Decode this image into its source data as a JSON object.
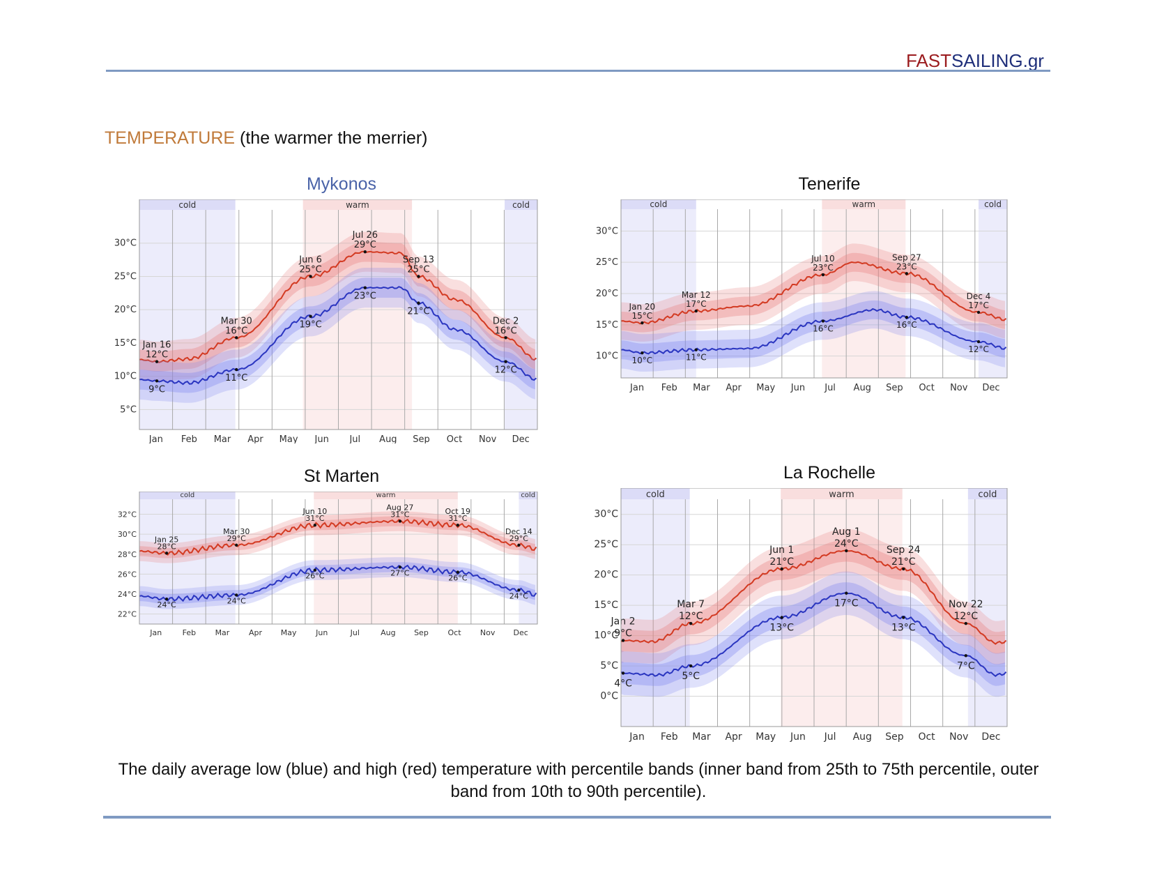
{
  "header": {
    "brand_part1": "FAST",
    "brand_part2": "SAILING.gr"
  },
  "section": {
    "heading": "TEMPERATURE",
    "subtitle": "(the warmer the merrier)"
  },
  "caption": "The daily average low (blue) and high (red) temperature with percentile bands (inner band from 25th to 75th percentile, outer band from 10th to 90th percentile).",
  "colors": {
    "high": "#d33a22",
    "low": "#2a35c0",
    "cold_band": "#dcdcf7",
    "warm_band": "#f9dede",
    "title_blue": "#4a63a8"
  },
  "chart_data": [
    {
      "id": "mykonos",
      "type": "line",
      "title": "Mykonos",
      "months": [
        "Jan",
        "Feb",
        "Mar",
        "Apr",
        "May",
        "Jun",
        "Jul",
        "Aug",
        "Sep",
        "Oct",
        "Nov",
        "Dec"
      ],
      "ylim": [
        2,
        35
      ],
      "yticks": [
        5,
        10,
        15,
        20,
        25,
        30
      ],
      "unit": "°C",
      "bands": [
        {
          "label": "cold",
          "start": 0,
          "end": 88
        },
        {
          "label": "warm",
          "start": 150,
          "end": 250
        },
        {
          "label": "cold",
          "start": 335,
          "end": 365
        }
      ],
      "series": [
        {
          "name": "high",
          "x": [
            0,
            16,
            45,
            89,
            157,
            207,
            240,
            256,
            290,
            336,
            365
          ],
          "y": [
            12.5,
            12.2,
            12.6,
            15.8,
            25.0,
            28.7,
            28.5,
            25.0,
            21.5,
            15.8,
            12.5
          ]
        },
        {
          "name": "low",
          "x": [
            0,
            16,
            45,
            89,
            157,
            207,
            240,
            256,
            290,
            336,
            365
          ],
          "y": [
            9.5,
            9.3,
            9.0,
            11.0,
            19.0,
            23.3,
            23.3,
            21.0,
            17.0,
            12.2,
            9.5
          ]
        }
      ],
      "annotations": [
        {
          "series": "high",
          "x": 16,
          "y": 12.2,
          "lines": [
            "Jan 16",
            "12°C"
          ],
          "pos": "above"
        },
        {
          "series": "high",
          "x": 89,
          "y": 15.8,
          "lines": [
            "Mar 30",
            "16°C"
          ],
          "pos": "above"
        },
        {
          "series": "high",
          "x": 157,
          "y": 25.0,
          "lines": [
            "Jun 6",
            "25°C"
          ],
          "pos": "above"
        },
        {
          "series": "high",
          "x": 207,
          "y": 28.7,
          "lines": [
            "Jul 26",
            "29°C"
          ],
          "pos": "above"
        },
        {
          "series": "high",
          "x": 256,
          "y": 25.0,
          "lines": [
            "Sep 13",
            "25°C"
          ],
          "pos": "above"
        },
        {
          "series": "high",
          "x": 336,
          "y": 15.8,
          "lines": [
            "Dec 2",
            "16°C"
          ],
          "pos": "above"
        },
        {
          "series": "low",
          "x": 16,
          "y": 9.3,
          "lines": [
            "9°C"
          ],
          "pos": "below"
        },
        {
          "series": "low",
          "x": 89,
          "y": 11.0,
          "lines": [
            "11°C"
          ],
          "pos": "below"
        },
        {
          "series": "low",
          "x": 157,
          "y": 19.0,
          "lines": [
            "19°C"
          ],
          "pos": "below"
        },
        {
          "series": "low",
          "x": 207,
          "y": 23.3,
          "lines": [
            "23°C"
          ],
          "pos": "below"
        },
        {
          "series": "low",
          "x": 256,
          "y": 21.0,
          "lines": [
            "21°C"
          ],
          "pos": "below"
        },
        {
          "series": "low",
          "x": 336,
          "y": 12.2,
          "lines": [
            "12°C"
          ],
          "pos": "below"
        }
      ]
    },
    {
      "id": "tenerife",
      "type": "line",
      "title": "Tenerife",
      "months": [
        "Jan",
        "Feb",
        "Mar",
        "Apr",
        "May",
        "Jun",
        "Jul",
        "Aug",
        "Sep",
        "Oct",
        "Nov",
        "Dec"
      ],
      "ylim": [
        6.5,
        33.5
      ],
      "yticks": [
        10,
        15,
        20,
        25,
        30
      ],
      "unit": "°C",
      "bands": [
        {
          "label": "cold",
          "start": 0,
          "end": 71
        },
        {
          "label": "warm",
          "start": 190,
          "end": 269
        },
        {
          "label": "cold",
          "start": 338,
          "end": 365
        }
      ],
      "series": [
        {
          "name": "high",
          "x": [
            0,
            20,
            71,
            120,
            191,
            220,
            270,
            338,
            365
          ],
          "y": [
            15.6,
            15.3,
            17.2,
            18.0,
            23.0,
            25.0,
            23.2,
            17.0,
            15.8
          ]
        },
        {
          "name": "low",
          "x": [
            0,
            20,
            71,
            120,
            191,
            240,
            270,
            338,
            365
          ],
          "y": [
            11.0,
            10.5,
            11.0,
            11.2,
            15.6,
            17.4,
            16.2,
            12.3,
            11.2
          ]
        }
      ],
      "annotations": [
        {
          "series": "high",
          "x": 20,
          "y": 15.3,
          "lines": [
            "Jan 20",
            "15°C"
          ],
          "pos": "above"
        },
        {
          "series": "high",
          "x": 71,
          "y": 17.2,
          "lines": [
            "Mar 12",
            "17°C"
          ],
          "pos": "above"
        },
        {
          "series": "high",
          "x": 191,
          "y": 23.0,
          "lines": [
            "Jul 10",
            "23°C"
          ],
          "pos": "above"
        },
        {
          "series": "high",
          "x": 270,
          "y": 23.2,
          "lines": [
            "Sep 27",
            "23°C"
          ],
          "pos": "above"
        },
        {
          "series": "high",
          "x": 338,
          "y": 17.0,
          "lines": [
            "Dec 4",
            "17°C"
          ],
          "pos": "above"
        },
        {
          "series": "low",
          "x": 20,
          "y": 10.5,
          "lines": [
            "10°C"
          ],
          "pos": "below"
        },
        {
          "series": "low",
          "x": 71,
          "y": 11.0,
          "lines": [
            "11°C"
          ],
          "pos": "below"
        },
        {
          "series": "low",
          "x": 191,
          "y": 15.6,
          "lines": [
            "16°C"
          ],
          "pos": "below"
        },
        {
          "series": "low",
          "x": 270,
          "y": 16.2,
          "lines": [
            "16°C"
          ],
          "pos": "below"
        },
        {
          "series": "low",
          "x": 338,
          "y": 12.3,
          "lines": [
            "12°C"
          ],
          "pos": "below"
        }
      ]
    },
    {
      "id": "st-marten",
      "type": "line",
      "title": "St Marten",
      "months": [
        "Jan",
        "Feb",
        "Mar",
        "Apr",
        "May",
        "Jun",
        "Jul",
        "Aug",
        "Sep",
        "Oct",
        "Nov",
        "Dec"
      ],
      "ylim": [
        21,
        33.5
      ],
      "yticks": [
        22,
        24,
        26,
        28,
        30,
        32
      ],
      "unit": "°C",
      "bands": [
        {
          "label": "cold",
          "start": 0,
          "end": 88
        },
        {
          "label": "warm",
          "start": 160,
          "end": 292
        },
        {
          "label": "cold",
          "start": 348,
          "end": 365
        }
      ],
      "series": [
        {
          "name": "high",
          "x": [
            0,
            25,
            89,
            161,
            239,
            292,
            348,
            365
          ],
          "y": [
            28.3,
            28.1,
            28.9,
            30.9,
            31.3,
            30.9,
            28.9,
            28.5
          ]
        },
        {
          "name": "low",
          "x": [
            0,
            25,
            89,
            161,
            239,
            292,
            348,
            365
          ],
          "y": [
            23.8,
            23.5,
            23.9,
            26.4,
            26.7,
            26.2,
            24.4,
            23.9
          ]
        }
      ],
      "annotations": [
        {
          "series": "high",
          "x": 25,
          "y": 28.1,
          "lines": [
            "Jan 25",
            "28°C"
          ],
          "pos": "above"
        },
        {
          "series": "high",
          "x": 89,
          "y": 28.9,
          "lines": [
            "Mar 30",
            "29°C"
          ],
          "pos": "above"
        },
        {
          "series": "high",
          "x": 161,
          "y": 30.9,
          "lines": [
            "Jun 10",
            "31°C"
          ],
          "pos": "above"
        },
        {
          "series": "high",
          "x": 239,
          "y": 31.3,
          "lines": [
            "Aug 27",
            "31°C"
          ],
          "pos": "above"
        },
        {
          "series": "high",
          "x": 292,
          "y": 30.9,
          "lines": [
            "Oct 19",
            "31°C"
          ],
          "pos": "above"
        },
        {
          "series": "high",
          "x": 348,
          "y": 28.9,
          "lines": [
            "Dec 14",
            "29°C"
          ],
          "pos": "above"
        },
        {
          "series": "low",
          "x": 25,
          "y": 23.5,
          "lines": [
            "24°C"
          ],
          "pos": "below"
        },
        {
          "series": "low",
          "x": 89,
          "y": 23.9,
          "lines": [
            "24°C"
          ],
          "pos": "below"
        },
        {
          "series": "low",
          "x": 161,
          "y": 26.4,
          "lines": [
            "26°C"
          ],
          "pos": "below"
        },
        {
          "series": "low",
          "x": 239,
          "y": 26.7,
          "lines": [
            "27°C"
          ],
          "pos": "below"
        },
        {
          "series": "low",
          "x": 292,
          "y": 26.2,
          "lines": [
            "26°C"
          ],
          "pos": "below"
        },
        {
          "series": "low",
          "x": 348,
          "y": 24.4,
          "lines": [
            "24°C"
          ],
          "pos": "below"
        }
      ]
    },
    {
      "id": "la-rochelle",
      "type": "line",
      "title": "La Rochelle",
      "months": [
        "Jan",
        "Feb",
        "Mar",
        "Apr",
        "May",
        "Jun",
        "Jul",
        "Aug",
        "Sep",
        "Oct",
        "Nov",
        "Dec"
      ],
      "ylim": [
        -5,
        32.5
      ],
      "yticks": [
        0,
        5,
        10,
        15,
        20,
        25,
        30
      ],
      "unit": "°C",
      "bands": [
        {
          "label": "cold",
          "start": 0,
          "end": 65
        },
        {
          "label": "warm",
          "start": 151,
          "end": 266
        },
        {
          "label": "cold",
          "start": 328,
          "end": 365
        }
      ],
      "series": [
        {
          "name": "high",
          "x": [
            0,
            2,
            30,
            66,
            152,
            213,
            267,
            326,
            355,
            365
          ],
          "y": [
            9.0,
            9.2,
            9.0,
            12.0,
            21.0,
            24.0,
            21.0,
            12.0,
            8.8,
            9.0
          ]
        },
        {
          "name": "low",
          "x": [
            0,
            2,
            35,
            66,
            152,
            213,
            267,
            326,
            355,
            365
          ],
          "y": [
            4.0,
            3.8,
            3.5,
            5.0,
            13.0,
            17.0,
            13.0,
            6.7,
            3.5,
            3.8
          ]
        }
      ],
      "annotations": [
        {
          "series": "high",
          "x": 2,
          "y": 9.2,
          "lines": [
            "Jan 2",
            "9°C"
          ],
          "pos": "above"
        },
        {
          "series": "high",
          "x": 66,
          "y": 12.0,
          "lines": [
            "Mar 7",
            "12°C"
          ],
          "pos": "above"
        },
        {
          "series": "high",
          "x": 152,
          "y": 21.0,
          "lines": [
            "Jun 1",
            "21°C"
          ],
          "pos": "above"
        },
        {
          "series": "high",
          "x": 213,
          "y": 24.0,
          "lines": [
            "Aug 1",
            "24°C"
          ],
          "pos": "above"
        },
        {
          "series": "high",
          "x": 267,
          "y": 21.0,
          "lines": [
            "Sep 24",
            "21°C"
          ],
          "pos": "above"
        },
        {
          "series": "high",
          "x": 326,
          "y": 12.0,
          "lines": [
            "Nov 22",
            "12°C"
          ],
          "pos": "above"
        },
        {
          "series": "low",
          "x": 2,
          "y": 3.8,
          "lines": [
            "4°C"
          ],
          "pos": "below"
        },
        {
          "series": "low",
          "x": 66,
          "y": 5.0,
          "lines": [
            "5°C"
          ],
          "pos": "below"
        },
        {
          "series": "low",
          "x": 152,
          "y": 13.0,
          "lines": [
            "13°C"
          ],
          "pos": "below"
        },
        {
          "series": "low",
          "x": 213,
          "y": 17.0,
          "lines": [
            "17°C"
          ],
          "pos": "below"
        },
        {
          "series": "low",
          "x": 267,
          "y": 13.0,
          "lines": [
            "13°C"
          ],
          "pos": "below"
        },
        {
          "series": "low",
          "x": 326,
          "y": 6.7,
          "lines": [
            "7°C"
          ],
          "pos": "below"
        }
      ]
    }
  ]
}
